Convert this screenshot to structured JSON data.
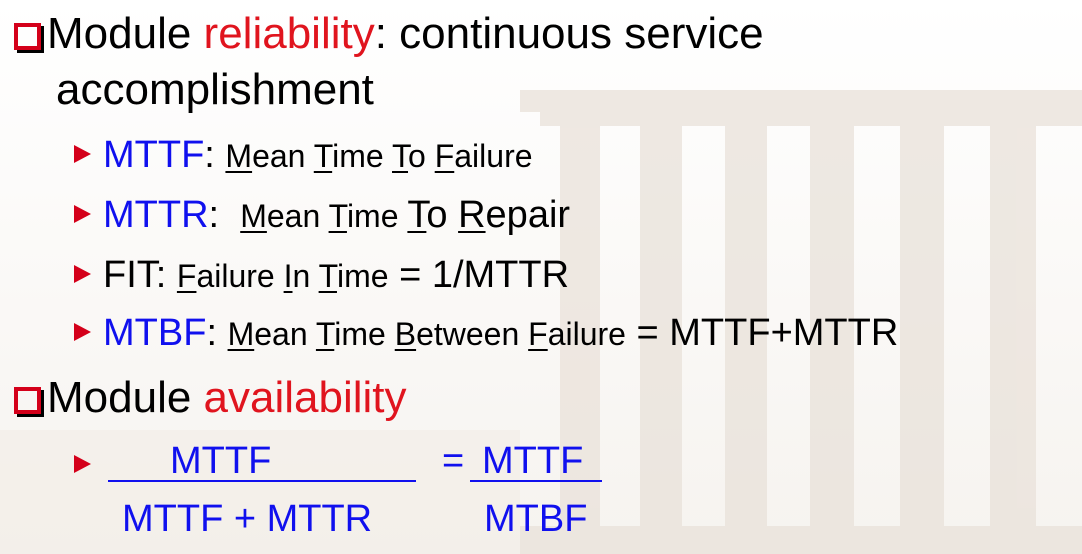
{
  "bullet1": {
    "pre": "Module ",
    "highlight": "reliability",
    "post": ": continuous service",
    "cont": "accomplishment"
  },
  "sub_items": [
    {
      "term": "MTTF",
      "colon": ": ",
      "def": [
        [
          "M",
          "ean "
        ],
        [
          "T",
          "ime "
        ],
        [
          "T",
          "o "
        ],
        [
          "F",
          "ailure"
        ]
      ],
      "suffix": ""
    },
    {
      "term": "MTTR",
      "colon": ":  ",
      "def": [
        [
          "M",
          "ean "
        ],
        [
          "T",
          "ime "
        ],
        [
          "T",
          "o "
        ],
        [
          "R",
          "epair"
        ]
      ],
      "suffix": ""
    },
    {
      "term": "FIT",
      "colon": ": ",
      "def": [
        [
          "F",
          "ailure "
        ],
        [
          "I",
          "n "
        ],
        [
          "T",
          "ime"
        ]
      ],
      "suffix": " = 1/MTTR"
    },
    {
      "term": "MTBF",
      "colon": ": ",
      "def": [
        [
          "M",
          "ean "
        ],
        [
          "T",
          "ime "
        ],
        [
          "B",
          "etween "
        ],
        [
          "F",
          "ailure"
        ]
      ],
      "suffix": " = MTTF+MTTR"
    }
  ],
  "bullet2": {
    "pre": "Module ",
    "highlight": "availability"
  },
  "formula": {
    "num1": "MTTF",
    "den1": "MTTF + MTTR",
    "equals": "=",
    "num2": "MTTF",
    "den2": "MTBF"
  },
  "colors": {
    "red": "#e0141e",
    "blue": "#1010ee",
    "bullet_red": "#d4001a"
  }
}
